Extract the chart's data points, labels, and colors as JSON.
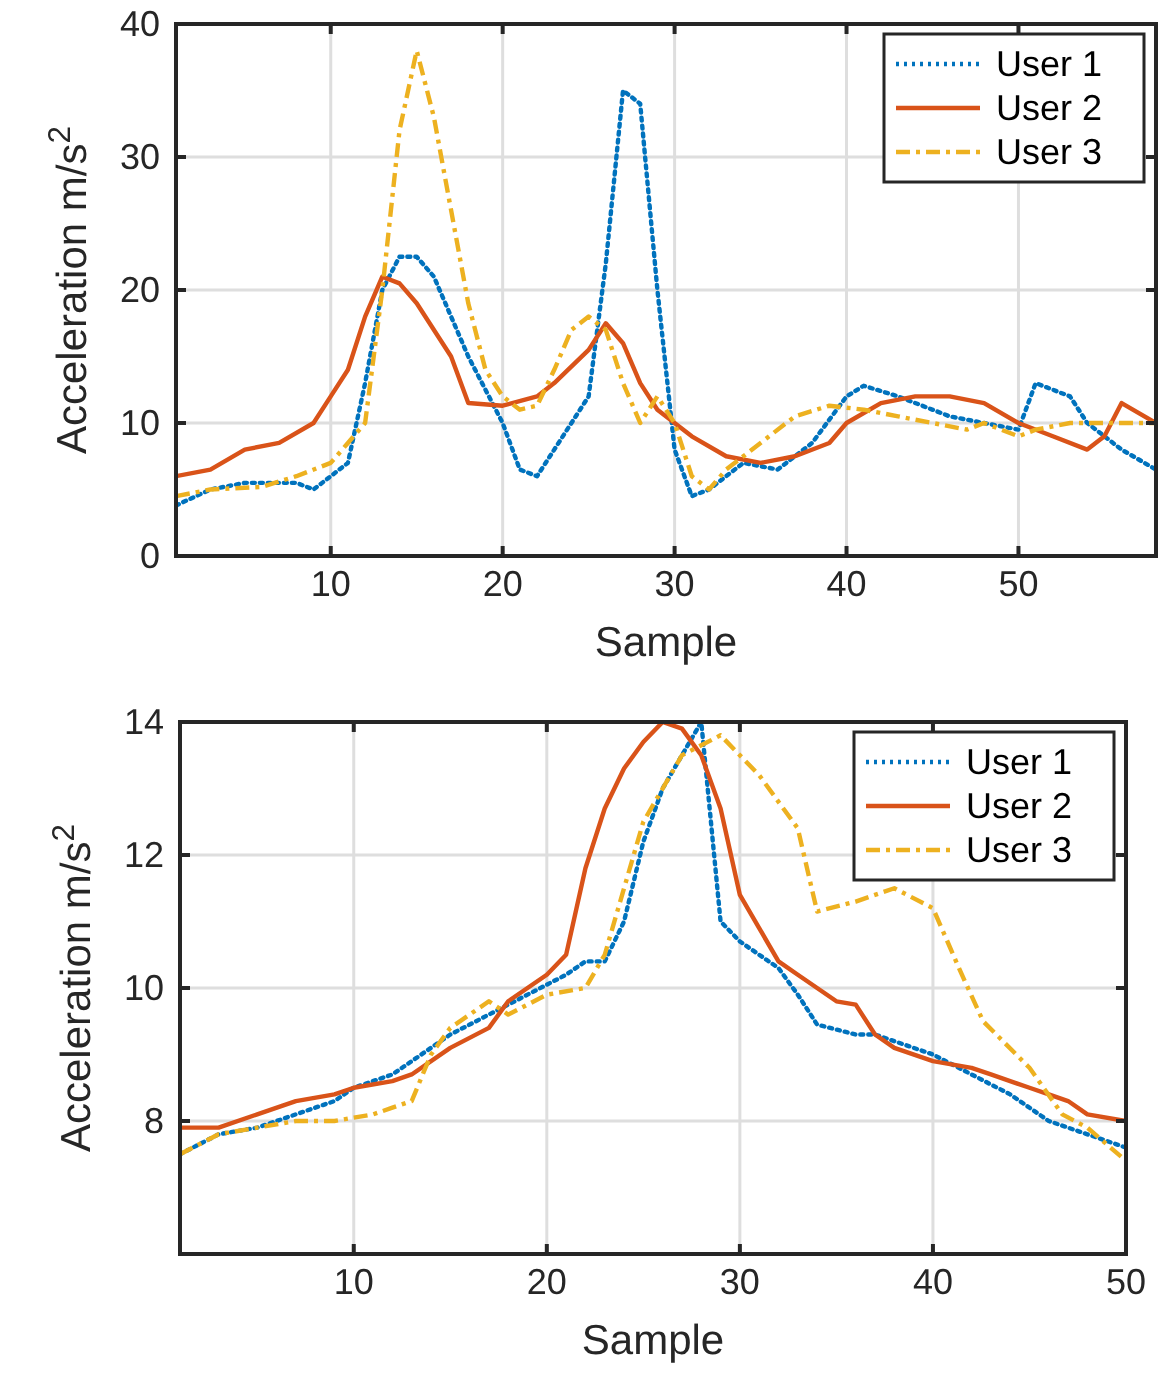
{
  "chart_data": [
    {
      "type": "line",
      "xlabel": "Sample",
      "ylabel": "Acceleration m/s$^{2}$",
      "xlim": [
        1,
        58
      ],
      "ylim": [
        0,
        40
      ],
      "xticks": [
        10,
        20,
        30,
        40,
        50
      ],
      "yticks": [
        0,
        10,
        20,
        30,
        40
      ],
      "grid": true,
      "legend": "top right",
      "series": [
        {
          "name": "User 1",
          "color": "#0072bd",
          "line_style": "dotted",
          "x": [
            1,
            3,
            5,
            8,
            9,
            11,
            12,
            13,
            14,
            15,
            16,
            18,
            20,
            21,
            22,
            23,
            25,
            26,
            27,
            28,
            29,
            30,
            31,
            32,
            34,
            36,
            38,
            40,
            41,
            43,
            46,
            48,
            50,
            51,
            53,
            54,
            56,
            58
          ],
          "values": [
            3.8,
            5,
            5.5,
            5.5,
            5,
            7,
            13,
            20,
            22.5,
            22.5,
            21,
            15,
            10,
            6.5,
            6,
            8,
            12,
            22,
            35,
            34,
            20,
            8,
            4.5,
            5,
            7,
            6.5,
            8.5,
            12,
            12.8,
            12,
            10.5,
            10,
            9.5,
            13,
            12,
            10,
            8,
            6.5
          ]
        },
        {
          "name": "User 2",
          "color": "#d95319",
          "line_style": "solid",
          "x": [
            1,
            3,
            5,
            7,
            9,
            10,
            11,
            12,
            13,
            14,
            15,
            17,
            18,
            20,
            22,
            23,
            25,
            26,
            27,
            28,
            29,
            31,
            33,
            35,
            37,
            39,
            40,
            42,
            44,
            46,
            48,
            50,
            52,
            54,
            55,
            56,
            58
          ],
          "values": [
            6,
            6.5,
            8,
            8.5,
            10,
            12,
            14,
            18,
            21,
            20.5,
            19,
            15,
            11.5,
            11.3,
            12,
            13,
            15.5,
            17.5,
            16,
            13,
            11,
            9,
            7.5,
            7,
            7.5,
            8.5,
            10,
            11.5,
            12,
            12,
            11.5,
            10,
            9,
            8,
            9,
            11.5,
            10
          ]
        },
        {
          "name": "User 3",
          "color": "#edb120",
          "line_style": "dashed",
          "x": [
            1,
            3,
            6,
            8,
            10,
            11,
            12,
            13,
            14,
            15,
            16,
            17,
            18,
            19,
            20,
            21,
            22,
            23,
            24,
            25,
            26,
            27,
            28,
            29,
            30,
            31,
            32,
            33,
            35,
            37,
            39,
            41,
            43,
            45,
            47,
            48,
            50,
            51,
            53,
            55,
            58
          ],
          "values": [
            4.5,
            5,
            5.2,
            6,
            7,
            8.5,
            10,
            20,
            32,
            38,
            33,
            26,
            19,
            14,
            12,
            11,
            11.3,
            14,
            17,
            18,
            17,
            13,
            10,
            12,
            10,
            6,
            5,
            6.5,
            8.5,
            10.5,
            11.3,
            11,
            10.5,
            10,
            9.5,
            10,
            9,
            9.5,
            10,
            10,
            10
          ]
        }
      ]
    },
    {
      "type": "line",
      "xlabel": "Sample",
      "ylabel": "Acceleration m/s$^{2}$",
      "xlim": [
        1,
        50
      ],
      "ylim": [
        6,
        14
      ],
      "xticks": [
        10,
        20,
        30,
        40,
        50
      ],
      "yticks": [
        8,
        10,
        12,
        14
      ],
      "grid": true,
      "legend": "top right",
      "series": [
        {
          "name": "User 1",
          "color": "#0072bd",
          "line_style": "dotted",
          "x": [
            1,
            3,
            5,
            7,
            9,
            10,
            12,
            13,
            15,
            17,
            19,
            21,
            22,
            23,
            24,
            25,
            26,
            27,
            28,
            29,
            30,
            32,
            33,
            34,
            36,
            37,
            40,
            42,
            44,
            46,
            48,
            50
          ],
          "values": [
            7.5,
            7.8,
            7.9,
            8.1,
            8.3,
            8.5,
            8.7,
            8.9,
            9.3,
            9.6,
            9.9,
            10.2,
            10.4,
            10.4,
            11,
            12.2,
            13,
            13.5,
            14,
            11,
            10.7,
            10.3,
            9.9,
            9.45,
            9.3,
            9.3,
            9,
            8.7,
            8.4,
            8,
            7.8,
            7.6
          ]
        },
        {
          "name": "User 2",
          "color": "#d95319",
          "line_style": "solid",
          "x": [
            1,
            3,
            5,
            7,
            9,
            10,
            12,
            13,
            15,
            17,
            18,
            20,
            21,
            22,
            23,
            24,
            25,
            26,
            27,
            28,
            29,
            30,
            31,
            32,
            33,
            34,
            35,
            36,
            37,
            38,
            40,
            42,
            43,
            45,
            46,
            47,
            48,
            50
          ],
          "values": [
            7.9,
            7.9,
            8.1,
            8.3,
            8.4,
            8.5,
            8.6,
            8.7,
            9.1,
            9.4,
            9.8,
            10.2,
            10.5,
            11.8,
            12.7,
            13.3,
            13.7,
            14,
            13.9,
            13.5,
            12.7,
            11.4,
            10.9,
            10.4,
            10.2,
            10,
            9.8,
            9.75,
            9.3,
            9.1,
            8.9,
            8.8,
            8.7,
            8.5,
            8.4,
            8.3,
            8.1,
            8
          ]
        },
        {
          "name": "User 3",
          "color": "#edb120",
          "line_style": "dashed",
          "x": [
            1,
            3,
            5,
            7,
            9,
            11,
            12,
            13,
            14,
            15,
            17,
            18,
            20,
            22,
            23,
            24,
            25,
            26,
            27,
            29,
            31,
            33,
            34,
            36,
            38,
            40,
            41.5,
            42.6,
            45,
            46.7,
            48,
            50
          ],
          "values": [
            7.5,
            7.8,
            7.9,
            8,
            8,
            8.1,
            8.2,
            8.3,
            9,
            9.4,
            9.8,
            9.6,
            9.9,
            10,
            10.5,
            11.5,
            12.5,
            13,
            13.5,
            13.8,
            13.2,
            12.4,
            11.15,
            11.3,
            11.5,
            11.2,
            10.2,
            9.5,
            8.8,
            8.1,
            7.9,
            7.4
          ]
        }
      ]
    }
  ]
}
